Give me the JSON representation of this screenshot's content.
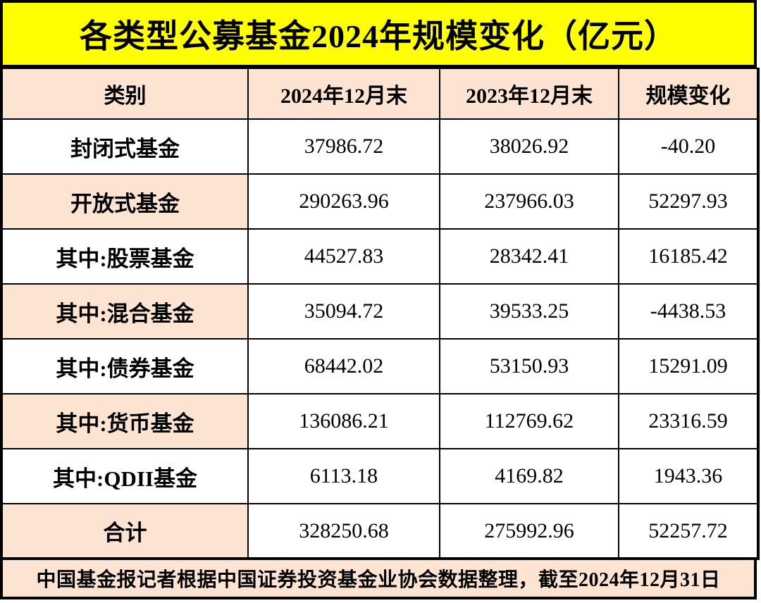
{
  "page": {
    "title": "各类型公募基金2024年规模变化（亿元）",
    "footer_note": "中国基金报记者根据中国证券投资基金业协会数据整理，截至2024年12月31日"
  },
  "colors": {
    "title_bg": "#ffff00",
    "header_bg": "#fce3d2",
    "alt_label_bg": "#fce3d2",
    "border": "#000000",
    "text": "#000000",
    "cell_bg": "#ffffff"
  },
  "chart_data": {
    "type": "table",
    "title": "各类型公募基金2024年规模变化（亿元）",
    "columns": [
      "类别",
      "2024年12月末",
      "2023年12月末",
      "规模变化"
    ],
    "rows": [
      {
        "category": "封闭式基金",
        "end_2024_12": "37986.72",
        "end_2023_12": "38026.92",
        "change": "-40.20"
      },
      {
        "category": "开放式基金",
        "end_2024_12": "290263.96",
        "end_2023_12": "237966.03",
        "change": "52297.93"
      },
      {
        "category": "其中:股票基金",
        "end_2024_12": "44527.83",
        "end_2023_12": "28342.41",
        "change": "16185.42"
      },
      {
        "category": "其中:混合基金",
        "end_2024_12": "35094.72",
        "end_2023_12": "39533.25",
        "change": "-4438.53"
      },
      {
        "category": "其中:债券基金",
        "end_2024_12": "68442.02",
        "end_2023_12": "53150.93",
        "change": "15291.09"
      },
      {
        "category": "其中:货币基金",
        "end_2024_12": "136086.21",
        "end_2023_12": "112769.62",
        "change": "23316.59"
      },
      {
        "category": "其中:QDII基金",
        "end_2024_12": "6113.18",
        "end_2023_12": "4169.82",
        "change": "1943.36"
      },
      {
        "category": "合计",
        "end_2024_12": "328250.68",
        "end_2023_12": "275992.96",
        "change": "52257.72"
      }
    ],
    "source_note": "中国基金报记者根据中国证券投资基金业协会数据整理，截至2024年12月31日"
  }
}
